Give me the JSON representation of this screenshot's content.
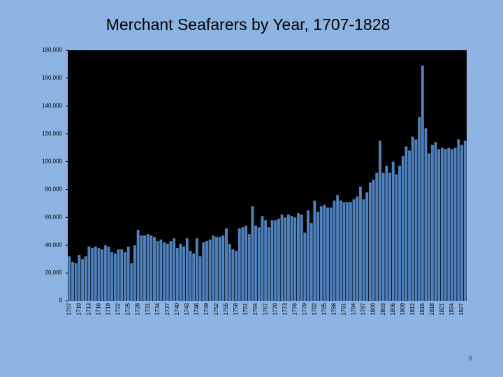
{
  "chart_data": {
    "type": "bar",
    "title": "Merchant Seafarers by Year, 1707-1828",
    "categories": [
      "1707",
      null,
      null,
      "1710",
      null,
      null,
      "1713",
      null,
      null,
      "1716",
      null,
      null,
      "1719",
      null,
      null,
      "1722",
      null,
      null,
      "1725",
      null,
      null,
      "1728",
      null,
      null,
      "1731",
      null,
      null,
      "1734",
      null,
      null,
      "1737",
      null,
      null,
      "1740",
      null,
      null,
      "1743",
      null,
      null,
      "1746",
      null,
      null,
      "1749",
      null,
      null,
      "1752",
      null,
      null,
      "1755",
      null,
      null,
      "1758",
      null,
      null,
      "1761",
      null,
      null,
      "1764",
      null,
      null,
      "1767",
      null,
      null,
      "1770",
      null,
      null,
      "1773",
      null,
      null,
      "1776",
      null,
      null,
      "1779",
      null,
      null,
      "1782",
      null,
      null,
      "1785",
      null,
      null,
      "1788",
      null,
      null,
      "1791",
      null,
      null,
      "1794",
      null,
      null,
      "1797",
      null,
      null,
      "1800",
      null,
      null,
      "1803",
      null,
      null,
      "1806",
      null,
      null,
      "1809",
      null,
      null,
      "1812",
      null,
      null,
      "1815",
      null,
      null,
      "1818",
      null,
      null,
      "1821",
      null,
      null,
      "1824",
      null,
      null,
      "1827",
      null
    ],
    "values": [
      32000,
      28000,
      27000,
      33000,
      30000,
      32000,
      39000,
      38000,
      39000,
      38000,
      37000,
      40000,
      39000,
      35000,
      34000,
      37000,
      37000,
      35000,
      39000,
      27000,
      40000,
      51000,
      47000,
      47000,
      48000,
      47000,
      46000,
      43000,
      44000,
      42000,
      41000,
      43000,
      45000,
      38000,
      41000,
      39000,
      45000,
      36000,
      34000,
      45000,
      32000,
      42000,
      43000,
      44000,
      47000,
      46000,
      46000,
      47000,
      52000,
      41000,
      37000,
      36000,
      52000,
      53000,
      54000,
      48000,
      68000,
      54000,
      53000,
      61000,
      58000,
      53000,
      58000,
      58000,
      59000,
      62000,
      60000,
      62000,
      61000,
      60000,
      63000,
      62000,
      49000,
      65000,
      56000,
      72000,
      64000,
      68000,
      69000,
      67000,
      67000,
      72000,
      76000,
      72000,
      71000,
      71000,
      71000,
      73000,
      75000,
      82000,
      73000,
      78000,
      85000,
      87000,
      92000,
      115000,
      92000,
      97000,
      92000,
      100000,
      91000,
      97000,
      104000,
      111000,
      108000,
      118000,
      116000,
      132000,
      169000,
      124000,
      106000,
      112000,
      114000,
      109000,
      110000,
      109000,
      110000,
      109000,
      110000,
      116000,
      112000,
      115000
    ],
    "color": "#4f81bd",
    "ylim": [
      0,
      180000
    ],
    "yticks": [
      0,
      {
        "value": 20000,
        "label": "20,000"
      },
      {
        "value": 40000,
        "label": "40,000"
      },
      {
        "value": 60000,
        "label": "60,000"
      },
      {
        "value": 80000,
        "label": "80,000"
      },
      {
        "value": 100000,
        "label": "100,000"
      },
      {
        "value": 120000,
        "label": "120,000"
      },
      {
        "value": 140000,
        "label": "140,000"
      },
      {
        "value": 160000,
        "label": "160,000"
      },
      {
        "value": 180000,
        "label": "180,000"
      }
    ],
    "grid": false
  },
  "page_number": "9"
}
